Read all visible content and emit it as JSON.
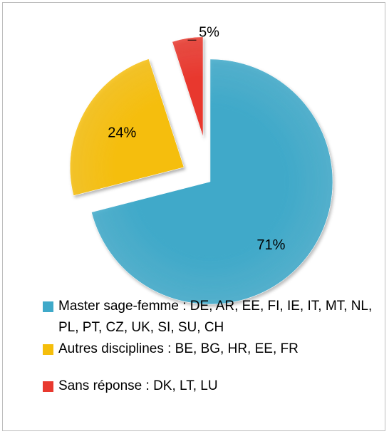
{
  "chart_data": {
    "type": "pie",
    "categories": [
      "Master sage-femme : DE, AR, EE, FI, IE, IT, MT, NL, PL, PT, CZ, UK, SI, SU, CH",
      "Autres disciplines : BE, BG, HR, EE, FR",
      "Sans réponse : DK, LT, LU"
    ],
    "values": [
      71,
      24,
      5
    ],
    "value_labels": [
      "71%",
      "24%",
      "5%"
    ],
    "colors": [
      "#3fa9c9",
      "#f5be0b",
      "#e8392f"
    ]
  }
}
